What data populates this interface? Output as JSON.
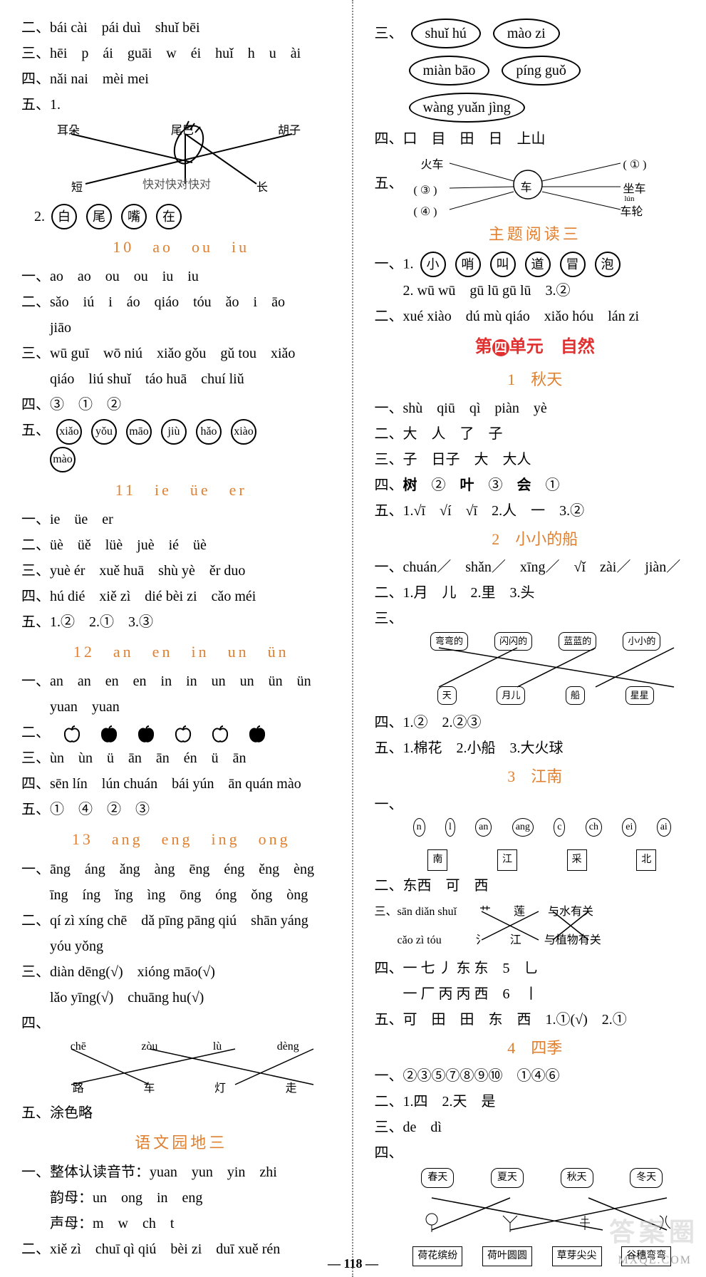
{
  "pageNumber": "118",
  "watermark": "答案圈",
  "site": "MXQE.COM",
  "left": {
    "l1": "二、bái cài　pái duì　shuǐ bēi",
    "l2": "三、hēi　p　ái　guāi　w　éi　huǐ　h　u　ài",
    "l3": "四、nǎi nai　mèi mei",
    "l4": "五、1.",
    "d1_labels": [
      "耳朵",
      "尾巴",
      "胡子",
      "短",
      "快对快对快对",
      "长"
    ],
    "l5a": "2.",
    "circ1": [
      "白",
      "尾",
      "嘴",
      "在"
    ],
    "sec10": "10　ao　ou　iu",
    "l6": "一、ao　ao　ou　ou　iu　iu",
    "l7": "二、sǎo　iú　i　áo　qiáo　tóu　ǎo　i　āo",
    "l7b": "　　jiāo",
    "l8": "三、wū guī　wō niú　xiǎo gǒu　gǔ tou　xiǎo",
    "l8b": "　　qiáo　liú shuǐ　táo huā　chuí liǔ",
    "l9": "四、③　①　②",
    "l10": "五、",
    "circ2": [
      "xiǎo",
      "yǒu",
      "māo",
      "jiù",
      "hǎo",
      "xiào"
    ],
    "circ2b": [
      "mào"
    ],
    "sec11": "11　ie　üe　er",
    "l11": "一、ie　üe　er",
    "l12": "二、üè　üě　lüè　juè　ié　üè",
    "l13": "三、yuè ér　xuě huā　shù yè　ěr duo",
    "l14": "四、hú dié　xiě zì　dié bèi zi　cǎo méi",
    "l15": "五、1.②　2.①　3.③",
    "sec12": "12　an　en　in　un　ün",
    "l16": "一、an　an　en　en　in　in　un　un　ün　ün",
    "l16b": "　　yuan　yuan",
    "l17": "二、",
    "apples": [
      false,
      true,
      true,
      false,
      false,
      true
    ],
    "l18": "三、ùn　ùn　ü　ān　ān　én　ü　ān",
    "l19": "四、sēn lín　lún chuán　bái yún　ān quán mào",
    "l20": "五、①　④　②　③",
    "sec13": "13　ang　eng　ing　ong",
    "l21": "一、āng　áng　ǎng　àng　ēng　éng　ěng　èng",
    "l21b": "　　īng　íng　ǐng　ìng　ōng　óng　ǒng　òng",
    "l22": "二、qí zì xíng chē　dǎ pīng pāng qiú　shān yáng",
    "l22b": "　　yóu yǒng",
    "l23": "三、diàn dēng(√)　xióng māo(√)",
    "l23b": "　　lǎo yīng(√)　chuāng hu(√)",
    "l24": "四、",
    "match_top": [
      "chē",
      "zòu",
      "lù",
      "dèng"
    ],
    "match_bot": [
      "路",
      "车",
      "灯",
      "走"
    ],
    "l25": "五、涂色略",
    "sec_yy3": "语文园地三",
    "l26": "一、整体认读音节：yuan　yun　yin　zhi",
    "l27": "　　韵母：un　ong　in　eng",
    "l28": "　　声母：m　w　ch　t",
    "l29": "二、xiě zì　chuī qì qiú　bèi zi　duī xuě rén"
  },
  "right": {
    "r1": "三、",
    "ovals": [
      "shuǐ hú",
      "mào zi",
      "miàn bāo",
      "píng guǒ",
      "wàng yuǎn jìng"
    ],
    "r2": "四、口　目　田　日　上山",
    "r3": "五、",
    "car_labels": [
      "火车",
      "车",
      "①",
      "坐车",
      "③",
      "④",
      "车轮",
      "lún"
    ],
    "sec_read3": "主题阅读三",
    "r4": "一、1.",
    "circ3": [
      "小",
      "哨",
      "叫",
      "道",
      "冒",
      "泡"
    ],
    "r5": "　　2. wū wū　gū lū gū lū　3.②",
    "r6": "二、xué xiào　dú mù qiáo　xiǎo hóu　lán zi",
    "unit4": "第四单元　自然",
    "les1": "1　秋天",
    "s1": "一、shù　qiū　qì　piàn　yè",
    "s2": "二、大　人　了　子",
    "s3": "三、子　日子　大　大人",
    "s4": "四、树　②　叶　③　会　①",
    "s5": "五、1.√ī　√í　√ī　2.人　一　3.②",
    "les2": "2　小小的船",
    "t1": "一、chuán／　shǎn／　xīng／　√ǐ　zài／　jiàn／",
    "t2": "二、1.月　儿　2.里　3.头",
    "t3": "三、",
    "boat_top": [
      "弯弯的",
      "闪闪的",
      "蓝蓝的",
      "小小的"
    ],
    "boat_bot": [
      "天",
      "月儿",
      "船",
      "星星"
    ],
    "t4": "四、1.②　2.②③",
    "t5": "五、1.棉花　2.小船　3.大火球",
    "les3": "3　江南",
    "u1_top": [
      "n",
      "l",
      "an",
      "ang",
      "c",
      "ch",
      "ei",
      "ai"
    ],
    "u1_bot": [
      "南",
      "江",
      "采",
      "北"
    ],
    "u2": "二、东西　可　西",
    "u3a": "三、sān diǎn shuǐ　　艹　　莲　　与水有关",
    "u3b": "　　cǎo zì tóu　　　氵　　江　　与植物有关",
    "u4": "四、一 七 丿 东 东　5　乚",
    "u4b": "　　一 厂 丙 丙 西　6　丨",
    "u5": "五、可　田　田　东　西　1.①(√)　2.①",
    "les4": "4　四季",
    "v1": "一、②③⑤⑦⑧⑨⑩　①④⑥",
    "v2": "二、1.四　2.天　是",
    "v3": "三、de　dì",
    "v4": "四、",
    "seasons_top": [
      "春天",
      "夏天",
      "秋天",
      "冬天"
    ],
    "seasons_bot": [
      "荷花缤纷",
      "荷叶圆圆",
      "草芽尖尖",
      "谷穗弯弯"
    ]
  }
}
